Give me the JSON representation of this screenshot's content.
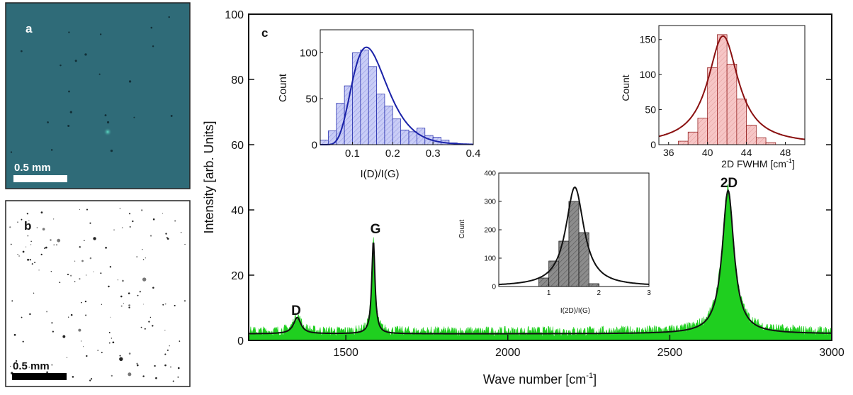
{
  "panels": {
    "a": {
      "label": "a",
      "scale_label": "0.5 mm"
    },
    "b": {
      "label": "b",
      "scale_label": "0.5 mm"
    }
  },
  "colors": {
    "panel_a_bg": "#2f6b78",
    "spectrum_fill": "#1fcf1f",
    "fit_line": "#111111",
    "hist1_bar": "#c9cdf6",
    "hist1_line": "#1a22a8",
    "hist2_bar": "#f6c6c6",
    "hist2_line": "#8a1010",
    "hist3_bar": "#7f7f7f",
    "hist3_line": "#111111"
  },
  "chart_data": [
    {
      "type": "line",
      "panel_label": "c",
      "xlabel": "Wave number [cm",
      "xlabel_sup": "-1",
      "xlabel_end": "]",
      "ylabel": "Intensity [arb. Units]",
      "xlim": [
        1200,
        3000
      ],
      "ylim": [
        0,
        100
      ],
      "xticks": [
        1500,
        2000,
        2500,
        3000
      ],
      "yticks": [
        0,
        20,
        40,
        60,
        80,
        100
      ],
      "baseline": 2,
      "noise_amplitude": 2,
      "peaks": [
        {
          "name": "D",
          "x": 1350,
          "height": 5,
          "width": 14
        },
        {
          "name": "G",
          "x": 1585,
          "height": 28.5,
          "width": 6
        },
        {
          "name": "2D",
          "x": 2680,
          "height": 44,
          "width": 22
        }
      ],
      "annotations": [
        "D",
        "G",
        "2D"
      ]
    },
    {
      "type": "bar",
      "inset": "top-left",
      "xlabel": "I(D)/I(G)",
      "ylabel": "Count",
      "xlim": [
        0.02,
        0.4
      ],
      "ylim": [
        0,
        125
      ],
      "xticks": [
        "0.1",
        "0.2",
        "0.3",
        "0.4"
      ],
      "xtick_values": [
        0.1,
        0.2,
        0.3,
        0.4
      ],
      "yticks": [
        0,
        50,
        100
      ],
      "bin_width": 0.02,
      "bins": [
        0.03,
        0.05,
        0.07,
        0.09,
        0.11,
        0.13,
        0.15,
        0.17,
        0.19,
        0.21,
        0.23,
        0.25,
        0.27,
        0.29,
        0.31,
        0.33,
        0.35
      ],
      "values": [
        5,
        15,
        45,
        64,
        100,
        103,
        85,
        55,
        42,
        28,
        16,
        14,
        18,
        10,
        8,
        5,
        2
      ],
      "fit": {
        "type": "lognormal",
        "peak_x": 0.135,
        "peak_y": 106
      }
    },
    {
      "type": "bar",
      "inset": "top-right",
      "xlabel": "2D FWHM [cm",
      "xlabel_sup": "-1",
      "xlabel_end": "]",
      "ylabel": "Count",
      "xlim": [
        35,
        50
      ],
      "ylim": [
        0,
        170
      ],
      "xticks": [
        "36",
        "40",
        "44",
        "48"
      ],
      "xtick_values": [
        36,
        40,
        44,
        48
      ],
      "yticks": [
        0,
        50,
        100,
        150
      ],
      "bin_width": 1,
      "bins": [
        37.5,
        38.5,
        39.5,
        40.5,
        41.5,
        42.5,
        43.5,
        44.5,
        45.5,
        46.5
      ],
      "values": [
        5,
        18,
        38,
        110,
        157,
        115,
        65,
        28,
        10,
        3
      ],
      "fit": {
        "type": "lorentzian",
        "center": 41.6,
        "peak_y": 155,
        "hwhm": 1.9
      }
    },
    {
      "type": "bar",
      "inset": "middle",
      "xlabel": "I(2D)/I(G)",
      "ylabel": "Count",
      "xlim": [
        0,
        3
      ],
      "ylim": [
        0,
        400
      ],
      "xticks": [
        "1",
        "2",
        "3"
      ],
      "xtick_values": [
        1,
        2,
        3
      ],
      "yticks": [
        0,
        100,
        200,
        300,
        400
      ],
      "bin_width": 0.2,
      "bins": [
        0.9,
        1.1,
        1.3,
        1.5,
        1.7,
        1.9
      ],
      "values": [
        30,
        90,
        160,
        300,
        190,
        10
      ],
      "fit": {
        "type": "lorentzian",
        "center": 1.52,
        "peak_y": 350,
        "hwhm": 0.22
      }
    }
  ]
}
